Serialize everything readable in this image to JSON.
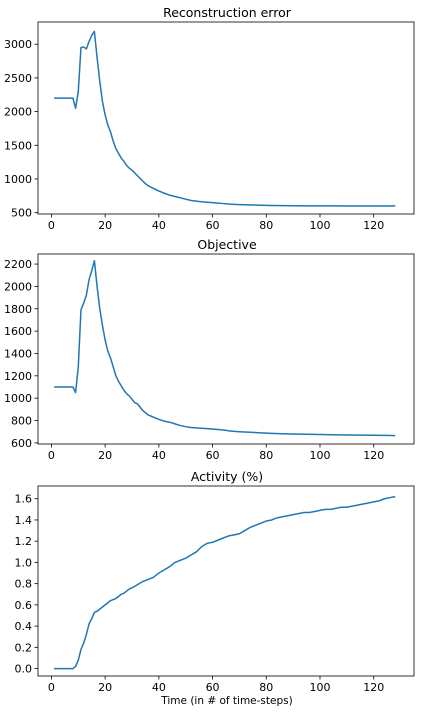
{
  "figure": {
    "xlabel": "Time (in # of time-steps)",
    "line_color": "#1f77b4"
  },
  "chart_data": [
    {
      "type": "line",
      "title": "Reconstruction error",
      "xlabel": "",
      "ylabel": "",
      "xlim": [
        -5,
        135
      ],
      "ylim": [
        480,
        3330
      ],
      "xticks": [
        0,
        20,
        40,
        60,
        80,
        100,
        120
      ],
      "yticks": [
        500,
        1000,
        1500,
        2000,
        2500,
        3000
      ],
      "series": [
        {
          "x": [
            1,
            2,
            3,
            4,
            5,
            6,
            7,
            8,
            9,
            10,
            11,
            12,
            13,
            14,
            15,
            16,
            17,
            18,
            19,
            20,
            21,
            22,
            23,
            24,
            25,
            26,
            27,
            28,
            29,
            30,
            31,
            32,
            33,
            34,
            35,
            36,
            38,
            40,
            42,
            44,
            46,
            48,
            50,
            52,
            55,
            58,
            61,
            64,
            67,
            70,
            74,
            78,
            82,
            86,
            90,
            95,
            100,
            105,
            110,
            115,
            120,
            125,
            128
          ],
          "y": [
            2200,
            2200,
            2200,
            2200,
            2200,
            2200,
            2200,
            2200,
            2050,
            2300,
            2950,
            2960,
            2930,
            3040,
            3130,
            3190,
            2800,
            2450,
            2150,
            1950,
            1800,
            1700,
            1560,
            1450,
            1380,
            1310,
            1260,
            1200,
            1160,
            1130,
            1090,
            1050,
            1010,
            970,
            930,
            900,
            860,
            820,
            790,
            760,
            740,
            720,
            700,
            680,
            665,
            655,
            645,
            635,
            625,
            620,
            615,
            610,
            607,
            605,
            603,
            601,
            600,
            600,
            599,
            599,
            598,
            598,
            600
          ]
        }
      ]
    },
    {
      "type": "line",
      "title": "Objective",
      "xlabel": "",
      "ylabel": "",
      "xlim": [
        -5,
        135
      ],
      "ylim": [
        590,
        2290
      ],
      "xticks": [
        0,
        20,
        40,
        60,
        80,
        100,
        120
      ],
      "yticks": [
        600,
        800,
        1000,
        1200,
        1400,
        1600,
        1800,
        2000,
        2200
      ],
      "series": [
        {
          "x": [
            1,
            2,
            3,
            4,
            5,
            6,
            7,
            8,
            9,
            10,
            11,
            12,
            13,
            14,
            15,
            16,
            17,
            18,
            19,
            20,
            21,
            22,
            23,
            24,
            25,
            26,
            27,
            28,
            29,
            30,
            31,
            32,
            33,
            34,
            35,
            36,
            38,
            40,
            42,
            44,
            46,
            48,
            50,
            52,
            55,
            58,
            61,
            64,
            67,
            70,
            74,
            78,
            82,
            86,
            90,
            95,
            100,
            105,
            110,
            115,
            120,
            125,
            128
          ],
          "y": [
            1100,
            1100,
            1100,
            1100,
            1100,
            1100,
            1100,
            1100,
            1050,
            1280,
            1790,
            1850,
            1920,
            2060,
            2140,
            2230,
            2000,
            1800,
            1650,
            1520,
            1420,
            1360,
            1280,
            1200,
            1150,
            1110,
            1070,
            1040,
            1020,
            990,
            960,
            950,
            920,
            890,
            870,
            850,
            830,
            810,
            795,
            785,
            770,
            755,
            745,
            738,
            732,
            728,
            722,
            715,
            705,
            700,
            695,
            690,
            685,
            682,
            680,
            677,
            675,
            673,
            670,
            669,
            668,
            667,
            665
          ]
        }
      ]
    },
    {
      "type": "line",
      "title": "Activity (%)",
      "xlabel": "Time (in # of time-steps)",
      "ylabel": "",
      "xlim": [
        -5,
        135
      ],
      "ylim": [
        -0.07,
        1.72
      ],
      "xticks": [
        0,
        20,
        40,
        60,
        80,
        100,
        120
      ],
      "yticks": [
        0.0,
        0.2,
        0.4,
        0.6,
        0.8,
        1.0,
        1.2,
        1.4,
        1.6
      ],
      "series": [
        {
          "x": [
            1,
            2,
            3,
            4,
            5,
            6,
            7,
            8,
            9,
            10,
            11,
            12,
            13,
            14,
            15,
            16,
            17,
            18,
            19,
            20,
            21,
            22,
            23,
            24,
            25,
            26,
            27,
            28,
            29,
            30,
            32,
            34,
            36,
            38,
            40,
            42,
            44,
            46,
            48,
            50,
            52,
            54,
            56,
            58,
            60,
            62,
            64,
            66,
            68,
            70,
            72,
            74,
            76,
            78,
            80,
            82,
            84,
            86,
            88,
            90,
            92,
            94,
            96,
            98,
            100,
            102,
            104,
            106,
            108,
            110,
            112,
            114,
            116,
            118,
            120,
            122,
            124,
            126,
            128
          ],
          "y": [
            0.0,
            0.0,
            0.0,
            0.0,
            0.0,
            0.0,
            0.0,
            0.0,
            0.02,
            0.08,
            0.18,
            0.24,
            0.32,
            0.42,
            0.47,
            0.53,
            0.54,
            0.56,
            0.58,
            0.6,
            0.62,
            0.64,
            0.65,
            0.66,
            0.68,
            0.7,
            0.71,
            0.73,
            0.75,
            0.76,
            0.79,
            0.82,
            0.84,
            0.86,
            0.9,
            0.93,
            0.96,
            1.0,
            1.02,
            1.04,
            1.07,
            1.1,
            1.15,
            1.18,
            1.19,
            1.21,
            1.23,
            1.25,
            1.26,
            1.27,
            1.3,
            1.33,
            1.35,
            1.37,
            1.39,
            1.4,
            1.42,
            1.43,
            1.44,
            1.45,
            1.46,
            1.47,
            1.47,
            1.48,
            1.49,
            1.5,
            1.5,
            1.51,
            1.52,
            1.52,
            1.53,
            1.54,
            1.55,
            1.56,
            1.57,
            1.58,
            1.6,
            1.61,
            1.62
          ]
        }
      ]
    }
  ]
}
